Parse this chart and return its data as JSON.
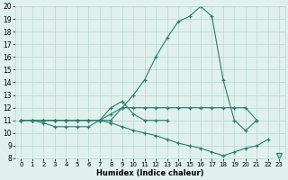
{
  "xlabel": "Humidex (Indice chaleur)",
  "curve_color": "#2d7d6e",
  "bg_color": "#dff0ed",
  "grid_color": "#b8d8d2",
  "ylim": [
    8,
    20
  ],
  "xlim": [
    -0.5,
    23.5
  ],
  "yticks": [
    8,
    9,
    10,
    11,
    12,
    13,
    14,
    15,
    16,
    17,
    18,
    19,
    20
  ],
  "xticks": [
    0,
    1,
    2,
    3,
    4,
    5,
    6,
    7,
    8,
    9,
    10,
    11,
    12,
    13,
    14,
    15,
    16,
    17,
    18,
    19,
    20,
    21,
    22,
    23
  ],
  "line1_x": [
    0,
    1,
    2,
    3,
    4,
    5,
    6,
    7,
    8,
    9,
    10,
    11,
    12,
    13,
    14,
    15,
    16,
    17,
    18,
    19,
    20,
    21
  ],
  "line1_y": [
    11,
    11,
    11,
    11,
    11,
    11,
    11,
    11,
    11,
    12,
    13,
    14.2,
    16,
    17.5,
    18.8,
    19.2,
    20,
    19.2,
    14.2,
    11,
    10.2,
    11
  ],
  "line2_x": [
    0,
    1,
    2,
    3,
    4,
    5,
    6,
    7,
    8,
    9,
    10,
    11,
    12,
    13,
    14,
    15,
    16,
    17,
    18,
    19,
    20,
    21
  ],
  "line2_y": [
    11,
    11,
    11,
    11,
    11,
    11,
    11,
    11,
    11.5,
    12,
    12,
    12,
    12,
    12,
    12,
    12,
    12,
    12,
    12,
    12,
    12,
    11
  ],
  "line3_x": [
    0,
    1,
    2,
    3,
    4,
    5,
    6,
    7,
    8,
    9,
    10,
    11,
    12,
    13
  ],
  "line3_y": [
    11,
    11,
    10.8,
    10.5,
    10.5,
    10.5,
    10.5,
    11,
    12,
    12.5,
    11.5,
    11,
    11,
    11
  ],
  "line4_x": [
    0,
    1,
    2,
    3,
    4,
    5,
    6,
    7,
    8,
    9,
    10,
    11,
    12,
    13,
    14,
    15,
    16,
    17,
    18,
    19,
    20,
    21,
    22,
    23
  ],
  "line4_y": [
    11,
    11,
    11,
    11,
    11,
    11,
    11,
    11,
    10.8,
    10.5,
    10.2,
    10,
    9.8,
    9.5,
    9.2,
    9,
    8.8,
    8.5,
    8.2,
    8.5,
    8.8,
    9,
    9.5,
    8.2
  ],
  "triangle_x": 23,
  "triangle_y": 8.2
}
